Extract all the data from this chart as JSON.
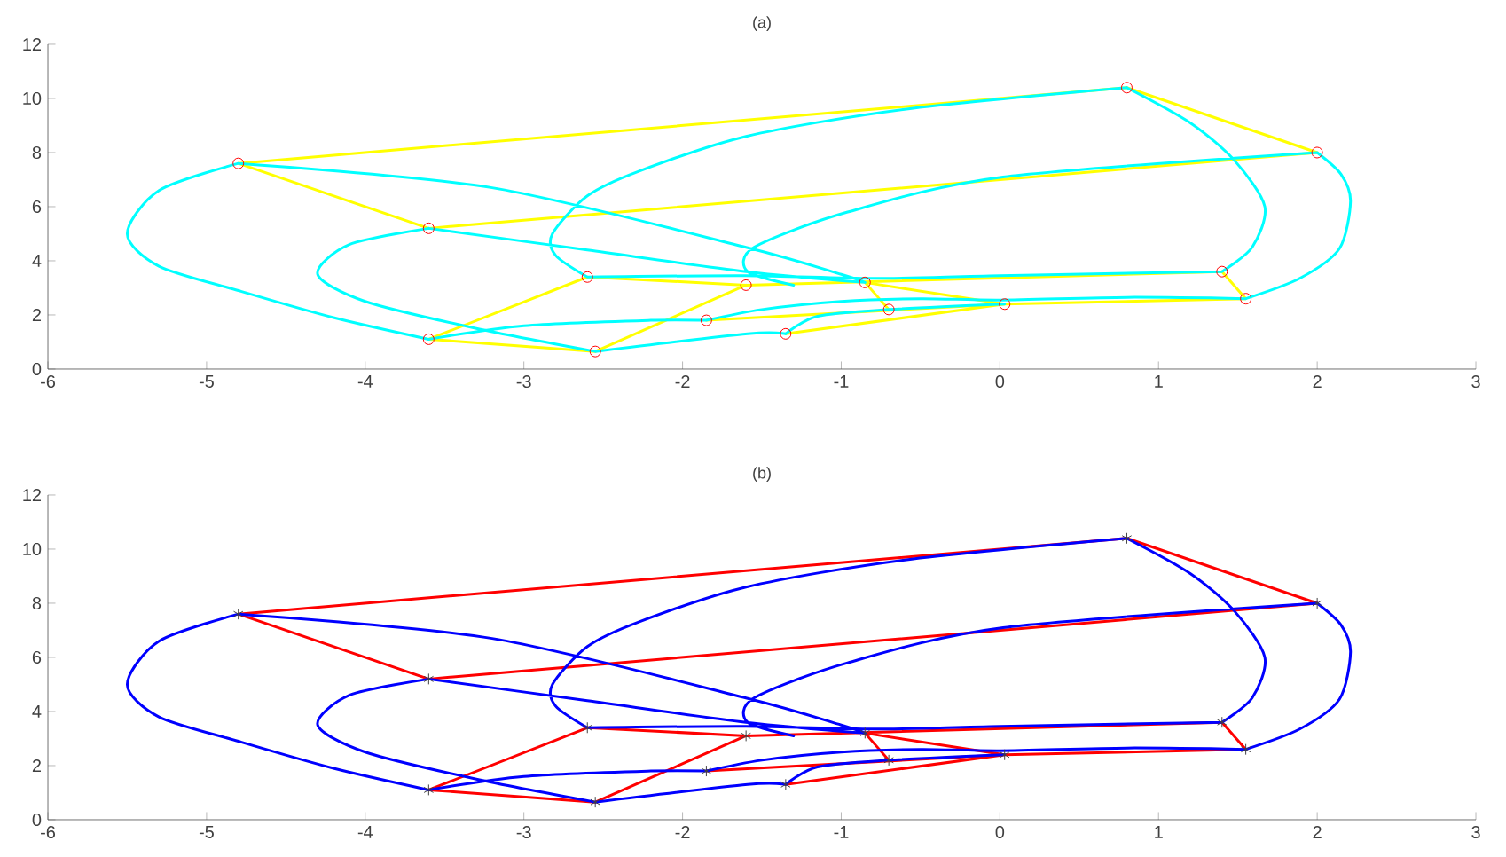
{
  "chart_data": [
    {
      "type": "line",
      "title": "(a)",
      "xlim": [
        -6,
        3
      ],
      "xticks": [
        -6,
        -5,
        -4,
        -3,
        -2,
        -1,
        0,
        1,
        2,
        3
      ],
      "ylim": [
        0,
        12
      ],
      "yticks": [
        0,
        2,
        4,
        6,
        8,
        10,
        12
      ],
      "grid": false,
      "legend": false,
      "series": [
        {
          "color": "#ffff00",
          "marker": "none",
          "x": [
            -4.8,
            0.8,
            null,
            0.8,
            2.0,
            null,
            2.0,
            -3.6,
            null,
            -3.6,
            -4.8,
            null,
            -2.6,
            -3.6,
            null,
            -3.6,
            -2.55,
            null,
            -2.55,
            -1.6,
            null,
            -2.6,
            -1.6,
            null,
            -1.6,
            1.4,
            null,
            1.4,
            1.55,
            null,
            1.55,
            0.03,
            null,
            -0.85,
            0.03,
            null,
            -1.85,
            0.03,
            null,
            -1.35,
            0.03,
            null,
            -0.85,
            -0.7
          ],
          "values": [
            7.6,
            10.4,
            null,
            10.4,
            8.0,
            null,
            8.0,
            5.2,
            null,
            5.2,
            7.6,
            null,
            3.4,
            1.1,
            null,
            1.1,
            0.65,
            null,
            0.65,
            3.1,
            null,
            3.4,
            3.1,
            null,
            3.1,
            3.6,
            null,
            3.6,
            2.6,
            null,
            2.6,
            2.4,
            null,
            3.2,
            2.4,
            null,
            1.8,
            2.4,
            null,
            1.3,
            2.4,
            null,
            3.2,
            2.2
          ]
        },
        {
          "color": "#00ffff",
          "marker": "none",
          "x": [
            -4.8,
            -5.3,
            -5.5,
            -5.3,
            -4.8,
            -4.2,
            -3.6,
            null,
            -4.8,
            -3.2,
            -1.6,
            -1.0,
            -0.85,
            null,
            -3.6,
            -2.6,
            -1.6,
            -0.85,
            null,
            -3.6,
            -4.1,
            -4.3,
            -4.0,
            -3.3,
            -2.55,
            null,
            -2.6,
            -2.8,
            -2.82,
            -2.6,
            -2.28,
            -1.6,
            -0.6,
            0.8,
            null,
            0.8,
            1.2,
            1.48,
            1.67,
            1.59,
            1.4,
            null,
            2.0,
            2.15,
            2.21,
            2.14,
            1.89,
            1.55,
            null,
            2.0,
            0.02,
            -0.96,
            -1.55,
            -1.59,
            -1.3,
            null,
            -2.6,
            -1.6,
            -0.8,
            0.0,
            1.4,
            null,
            -1.85,
            -1.5,
            -1.0,
            -0.5,
            0.0,
            0.8,
            1.55,
            null,
            -3.6,
            -3.0,
            -2.2,
            -1.85,
            null,
            -2.55,
            -1.59,
            -1.35,
            null,
            -1.35,
            -1.15,
            -0.7,
            0.03
          ],
          "values": [
            7.6,
            6.6,
            5.0,
            3.8,
            2.9,
            1.9,
            1.1,
            null,
            7.6,
            6.7,
            4.5,
            3.5,
            3.2,
            null,
            5.2,
            4.4,
            3.6,
            3.2,
            null,
            5.2,
            4.6,
            3.5,
            2.5,
            1.5,
            0.65,
            null,
            3.4,
            4.2,
            5.0,
            6.4,
            7.3,
            8.6,
            9.6,
            10.4,
            null,
            10.4,
            9.1,
            7.7,
            6.0,
            4.5,
            3.6,
            null,
            8.0,
            7.2,
            6.2,
            4.45,
            3.35,
            2.6,
            null,
            8.0,
            7.1,
            5.8,
            4.5,
            3.6,
            3.1,
            null,
            3.4,
            3.45,
            3.35,
            3.45,
            3.6,
            null,
            1.8,
            2.2,
            2.5,
            2.6,
            2.55,
            2.65,
            2.6,
            null,
            1.1,
            1.6,
            1.8,
            1.8,
            null,
            0.65,
            1.3,
            1.3,
            null,
            1.3,
            1.95,
            2.2,
            2.4
          ]
        },
        {
          "type": "scatter",
          "color": "#ff0000",
          "marker": "circle",
          "x": [
            -4.8,
            0.8,
            2.0,
            -3.6,
            -2.6,
            -1.6,
            -0.85,
            1.4,
            1.55,
            0.03,
            -0.7,
            -1.35,
            -1.85,
            -3.6,
            -2.55
          ],
          "values": [
            7.6,
            10.4,
            8.0,
            5.2,
            3.4,
            3.1,
            3.2,
            3.6,
            2.6,
            2.4,
            2.2,
            1.3,
            1.8,
            1.1,
            0.65
          ]
        }
      ]
    },
    {
      "type": "line",
      "title": "(b)",
      "xlim": [
        -6,
        3
      ],
      "xticks": [
        -6,
        -5,
        -4,
        -3,
        -2,
        -1,
        0,
        1,
        2,
        3
      ],
      "ylim": [
        0,
        12
      ],
      "yticks": [
        0,
        2,
        4,
        6,
        8,
        10,
        12
      ],
      "grid": false,
      "legend": false,
      "series": [
        {
          "color": "#ff0000",
          "marker": "none",
          "x": [
            -4.8,
            0.8,
            null,
            0.8,
            2.0,
            null,
            2.0,
            -3.6,
            null,
            -3.6,
            -4.8,
            null,
            -2.6,
            -3.6,
            null,
            -3.6,
            -2.55,
            null,
            -2.55,
            -1.6,
            null,
            -2.6,
            -1.6,
            null,
            -1.6,
            1.4,
            null,
            1.4,
            1.55,
            null,
            1.55,
            0.03,
            null,
            -0.85,
            0.03,
            null,
            -1.85,
            0.03,
            null,
            -1.35,
            0.03,
            null,
            -0.85,
            -0.7
          ],
          "values": [
            7.6,
            10.4,
            null,
            10.4,
            8.0,
            null,
            8.0,
            5.2,
            null,
            5.2,
            7.6,
            null,
            3.4,
            1.1,
            null,
            1.1,
            0.65,
            null,
            0.65,
            3.1,
            null,
            3.4,
            3.1,
            null,
            3.1,
            3.6,
            null,
            3.6,
            2.6,
            null,
            2.6,
            2.4,
            null,
            3.2,
            2.4,
            null,
            1.8,
            2.4,
            null,
            1.3,
            2.4,
            null,
            3.2,
            2.2
          ]
        },
        {
          "color": "#0000ff",
          "marker": "none",
          "x": [
            -4.8,
            -5.3,
            -5.5,
            -5.3,
            -4.8,
            -4.2,
            -3.6,
            null,
            -4.8,
            -3.2,
            -1.6,
            -1.0,
            -0.85,
            null,
            -3.6,
            -2.6,
            -1.6,
            -0.85,
            null,
            -3.6,
            -4.1,
            -4.3,
            -4.0,
            -3.3,
            -2.55,
            null,
            -2.6,
            -2.8,
            -2.82,
            -2.6,
            -2.28,
            -1.6,
            -0.6,
            0.8,
            null,
            0.8,
            1.2,
            1.48,
            1.67,
            1.59,
            1.4,
            null,
            2.0,
            2.15,
            2.21,
            2.14,
            1.89,
            1.55,
            null,
            2.0,
            0.02,
            -0.96,
            -1.55,
            -1.59,
            -1.3,
            null,
            -2.6,
            -1.6,
            -0.8,
            0.0,
            1.4,
            null,
            -1.85,
            -1.5,
            -1.0,
            -0.5,
            0.0,
            0.8,
            1.55,
            null,
            -3.6,
            -3.0,
            -2.2,
            -1.85,
            null,
            -2.55,
            -1.59,
            -1.35,
            null,
            -1.35,
            -1.15,
            -0.7,
            0.03
          ],
          "values": [
            7.6,
            6.6,
            5.0,
            3.8,
            2.9,
            1.9,
            1.1,
            null,
            7.6,
            6.7,
            4.5,
            3.5,
            3.2,
            null,
            5.2,
            4.4,
            3.6,
            3.2,
            null,
            5.2,
            4.6,
            3.5,
            2.5,
            1.5,
            0.65,
            null,
            3.4,
            4.2,
            5.0,
            6.4,
            7.3,
            8.6,
            9.6,
            10.4,
            null,
            10.4,
            9.1,
            7.7,
            6.0,
            4.5,
            3.6,
            null,
            8.0,
            7.2,
            6.2,
            4.45,
            3.35,
            2.6,
            null,
            8.0,
            7.1,
            5.8,
            4.5,
            3.6,
            3.1,
            null,
            3.4,
            3.45,
            3.35,
            3.45,
            3.6,
            null,
            1.8,
            2.2,
            2.5,
            2.6,
            2.55,
            2.65,
            2.6,
            null,
            1.1,
            1.6,
            1.8,
            1.8,
            null,
            0.65,
            1.3,
            1.3,
            null,
            1.3,
            1.95,
            2.2,
            2.4
          ]
        },
        {
          "type": "scatter",
          "color": "#404040",
          "marker": "cross",
          "x": [
            -4.8,
            0.8,
            2.0,
            -3.6,
            -2.6,
            -1.6,
            -0.85,
            1.4,
            1.55,
            0.03,
            -0.7,
            -1.35,
            -1.85,
            -3.6,
            -2.55
          ],
          "values": [
            7.6,
            10.4,
            8.0,
            5.2,
            3.4,
            3.1,
            3.2,
            3.6,
            2.6,
            2.4,
            2.2,
            1.3,
            1.8,
            1.1,
            0.65
          ]
        }
      ]
    }
  ]
}
